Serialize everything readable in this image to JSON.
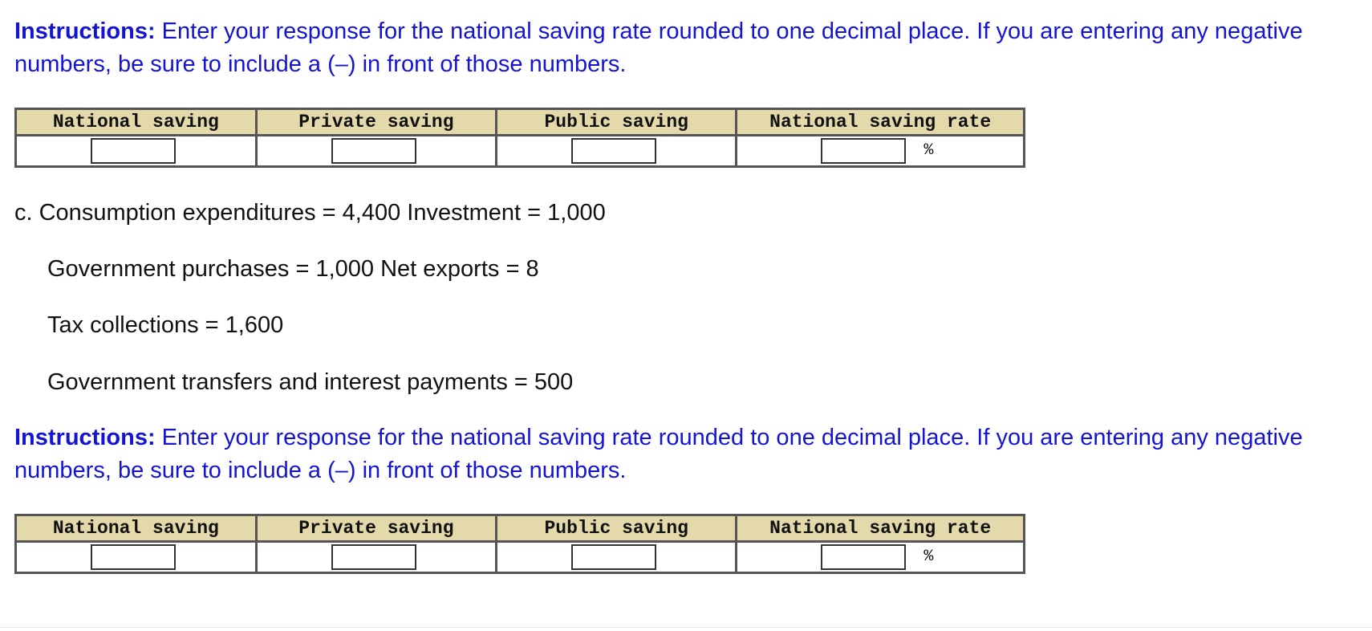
{
  "instructions": {
    "label": "Instructions:",
    "text": " Enter your response for the national saving rate rounded to one decimal place. If you are entering any negative numbers, be sure to include a (–) in front of those numbers."
  },
  "table": {
    "headers": [
      "National saving",
      "Private saving",
      "Public saving",
      "National saving rate"
    ],
    "percent_symbol": "%"
  },
  "part_c": {
    "line1": "c.  Consumption expenditures = 4,400 Investment = 1,000",
    "line2": "Government purchases = 1,000 Net exports = 8",
    "line3": "Tax collections = 1,600",
    "line4": "Government transfers and interest payments = 500"
  }
}
